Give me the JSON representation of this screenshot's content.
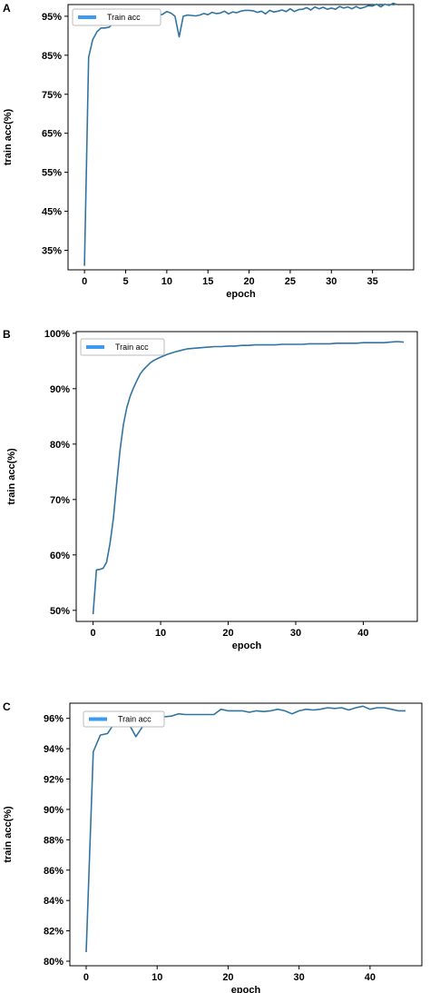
{
  "colors": {
    "line": "#3274a1",
    "legend_swatch": "#3c9bf0"
  },
  "chart_data": [
    {
      "panel": "A",
      "type": "line",
      "xlabel": "epoch",
      "ylabel": "train acc(%)",
      "xlim": [
        -2,
        40
      ],
      "ylim": [
        30,
        98
      ],
      "xticks": [
        0,
        5,
        10,
        15,
        20,
        25,
        30,
        35
      ],
      "xtick_labels": [
        "0",
        "5",
        "10",
        "15",
        "20",
        "25",
        "30",
        "35"
      ],
      "yticks": [
        35,
        45,
        55,
        65,
        75,
        85,
        95
      ],
      "ytick_labels": [
        "35%",
        "45%",
        "55%",
        "65%",
        "75%",
        "85%",
        "95%"
      ],
      "legend": {
        "position": "top-left",
        "entries": [
          "Train acc"
        ]
      },
      "series": [
        {
          "name": "Train acc",
          "x": [
            0,
            0.5,
            1,
            1.5,
            2,
            2.5,
            3,
            3.5,
            4,
            4.5,
            5,
            5.5,
            6,
            6.5,
            7,
            7.5,
            8,
            8.5,
            9,
            9.5,
            10,
            10.5,
            11,
            11.5,
            12,
            12.5,
            13,
            13.5,
            14,
            14.5,
            15,
            15.5,
            16,
            16.5,
            17,
            17.5,
            18,
            18.5,
            19,
            19.5,
            20,
            20.5,
            21,
            21.5,
            22,
            22.5,
            23,
            23.5,
            24,
            24.5,
            25,
            25.5,
            26,
            26.5,
            27,
            27.5,
            28,
            28.5,
            29,
            29.5,
            30,
            30.5,
            31,
            31.5,
            32,
            32.5,
            33,
            33.5,
            34,
            34.5,
            35,
            35.5,
            36,
            36.5,
            37,
            37.5,
            38
          ],
          "y": [
            31,
            84.5,
            89,
            91,
            92,
            92,
            92.2,
            93.2,
            93.6,
            94.2,
            93.3,
            94.4,
            94,
            94.2,
            94.6,
            95.2,
            95.4,
            96,
            95.2,
            95.5,
            96.2,
            95.8,
            95,
            89.7,
            95,
            95.3,
            95.2,
            95.1,
            95.3,
            95.7,
            95.4,
            96,
            95.7,
            95.8,
            96.3,
            95.6,
            96.1,
            95.9,
            96.3,
            96.5,
            96.5,
            96.4,
            96,
            96.3,
            95.6,
            96.5,
            96.1,
            96.3,
            96.6,
            96.2,
            96.9,
            96.2,
            96.7,
            96.8,
            97.2,
            96.6,
            97.4,
            96.9,
            97.3,
            96.8,
            97.1,
            96.8,
            97.5,
            97.1,
            97.4,
            96.9,
            97.5,
            97,
            97.3,
            97.7,
            97.6,
            98.1,
            97.4,
            98.1,
            97.8,
            98.3,
            98
          ]
        }
      ]
    },
    {
      "panel": "B",
      "type": "line",
      "xlabel": "epoch",
      "ylabel": "train acc(%)",
      "xlim": [
        -2.5,
        48
      ],
      "ylim": [
        48,
        100.3
      ],
      "xticks": [
        0,
        10,
        20,
        30,
        40
      ],
      "xtick_labels": [
        "0",
        "10",
        "20",
        "30",
        "40"
      ],
      "yticks": [
        50,
        60,
        70,
        80,
        90,
        100
      ],
      "ytick_labels": [
        "50%",
        "60%",
        "70%",
        "80%",
        "90%",
        "100%"
      ],
      "legend": {
        "position": "top-left",
        "entries": [
          "Train acc"
        ]
      },
      "series": [
        {
          "name": "Train acc",
          "x": [
            0,
            0.5,
            1,
            1.5,
            2,
            2.5,
            3,
            3.5,
            4,
            4.5,
            5,
            5.5,
            6,
            6.5,
            7,
            7.5,
            8,
            8.5,
            9,
            9.5,
            10,
            11,
            12,
            13,
            14,
            15,
            16,
            17,
            18,
            19,
            20,
            21,
            22,
            23,
            24,
            25,
            26,
            27,
            28,
            29,
            30,
            31,
            32,
            33,
            34,
            35,
            36,
            37,
            38,
            39,
            40,
            41,
            42,
            43,
            44,
            45,
            46
          ],
          "y": [
            49.3,
            57.3,
            57.4,
            57.6,
            58.7,
            62,
            66.6,
            73,
            79,
            83.6,
            86.6,
            88.7,
            90.2,
            91.5,
            92.7,
            93.5,
            94.1,
            94.7,
            95.1,
            95.4,
            95.7,
            96.2,
            96.6,
            96.9,
            97.2,
            97.3,
            97.4,
            97.5,
            97.6,
            97.6,
            97.7,
            97.7,
            97.8,
            97.8,
            97.9,
            97.9,
            97.9,
            97.9,
            98,
            98,
            98,
            98,
            98.1,
            98.1,
            98.1,
            98.1,
            98.2,
            98.2,
            98.2,
            98.2,
            98.3,
            98.3,
            98.3,
            98.3,
            98.4,
            98.5,
            98.4
          ]
        }
      ]
    },
    {
      "panel": "C",
      "type": "line",
      "xlabel": "epoch",
      "ylabel": "train acc(%)",
      "xlim": [
        -2.3,
        47.3
      ],
      "ylim": [
        79.7,
        97
      ],
      "xticks": [
        0,
        10,
        20,
        30,
        40
      ],
      "xtick_labels": [
        "0",
        "10",
        "20",
        "30",
        "40"
      ],
      "yticks": [
        80,
        82,
        84,
        86,
        88,
        90,
        92,
        94,
        96
      ],
      "ytick_labels": [
        "80%",
        "82%",
        "84%",
        "86%",
        "88%",
        "90%",
        "92%",
        "94%",
        "96%"
      ],
      "legend": {
        "position": "top-left",
        "entries": [
          "Train acc"
        ]
      },
      "series": [
        {
          "name": "Train acc",
          "x": [
            0,
            1,
            2,
            3,
            4,
            5,
            6,
            7,
            8,
            9,
            10,
            11,
            12,
            13,
            14,
            15,
            16,
            17,
            18,
            19,
            20,
            21,
            22,
            23,
            24,
            25,
            26,
            27,
            28,
            29,
            30,
            31,
            32,
            33,
            34,
            35,
            36,
            37,
            38,
            39,
            40,
            41,
            42,
            43,
            44,
            45
          ],
          "y": [
            80.6,
            93.8,
            94.9,
            95,
            95.7,
            95.7,
            95.65,
            94.8,
            95.5,
            95.85,
            96,
            96.1,
            96.15,
            96.3,
            96.25,
            96.25,
            96.25,
            96.25,
            96.25,
            96.6,
            96.5,
            96.5,
            96.5,
            96.4,
            96.5,
            96.45,
            96.5,
            96.6,
            96.5,
            96.3,
            96.5,
            96.6,
            96.55,
            96.6,
            96.7,
            96.65,
            96.7,
            96.55,
            96.7,
            96.8,
            96.6,
            96.7,
            96.7,
            96.6,
            96.5,
            96.5
          ]
        }
      ]
    }
  ]
}
